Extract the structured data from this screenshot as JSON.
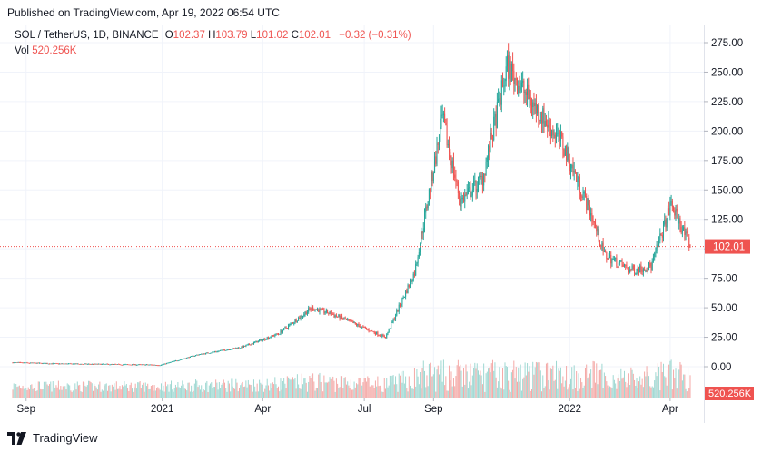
{
  "published": "Published on TradingView.com, Apr 19, 2022 06:54 UTC",
  "legend": {
    "symbol": "SOL / TetherUS, 1D, BINANCE",
    "open_key": "O",
    "open": "102.37",
    "high_key": "H",
    "high": "103.79",
    "low_key": "L",
    "low": "101.02",
    "close_key": "C",
    "close": "102.01",
    "change": "−0.32 (−0.31%)",
    "vol_key": "Vol",
    "vol": "520.256K"
  },
  "brand": "TradingView",
  "colors": {
    "up": "#26a69a",
    "down": "#ef5350",
    "vol_up": "#9fd8d2",
    "vol_down": "#f4a9a7",
    "grid": "#f0f3fa",
    "axis_text": "#131722",
    "price_line": "#ef5350"
  },
  "chart_data": {
    "type": "candlestick",
    "symbol": "SOL / TetherUS",
    "interval": "1D",
    "exchange": "BINANCE",
    "y_axis": {
      "ticks": [
        "275.00",
        "250.00",
        "225.00",
        "200.00",
        "175.00",
        "150.00",
        "125.00",
        "100.00",
        "75.00",
        "50.00",
        "25.00",
        "0.00"
      ],
      "range": [
        -5,
        285
      ]
    },
    "x_axis": {
      "ticks": [
        "Sep",
        "2021",
        "Apr",
        "Jul",
        "Sep",
        "2022",
        "Apr"
      ]
    },
    "last_price_label": "102.01",
    "last_volume_label": "520.256K",
    "price_path_approx": [
      {
        "date": "2020-08-20",
        "close": 3.5
      },
      {
        "date": "2020-10-01",
        "close": 2.5
      },
      {
        "date": "2020-12-31",
        "close": 1.5
      },
      {
        "date": "2021-02-01",
        "close": 10
      },
      {
        "date": "2021-03-15",
        "close": 17
      },
      {
        "date": "2021-04-15",
        "close": 28
      },
      {
        "date": "2021-05-15",
        "close": 50
      },
      {
        "date": "2021-06-01",
        "close": 45
      },
      {
        "date": "2021-07-20",
        "close": 25
      },
      {
        "date": "2021-08-15",
        "close": 80
      },
      {
        "date": "2021-09-09",
        "close": 210
      },
      {
        "date": "2021-09-25",
        "close": 140
      },
      {
        "date": "2021-10-15",
        "close": 160
      },
      {
        "date": "2021-11-06",
        "close": 255
      },
      {
        "date": "2021-12-01",
        "close": 220
      },
      {
        "date": "2021-12-25",
        "close": 190
      },
      {
        "date": "2022-01-20",
        "close": 130
      },
      {
        "date": "2022-02-01",
        "close": 95
      },
      {
        "date": "2022-02-24",
        "close": 82
      },
      {
        "date": "2022-03-15",
        "close": 85
      },
      {
        "date": "2022-04-02",
        "close": 138
      },
      {
        "date": "2022-04-19",
        "close": 102.01
      }
    ]
  }
}
